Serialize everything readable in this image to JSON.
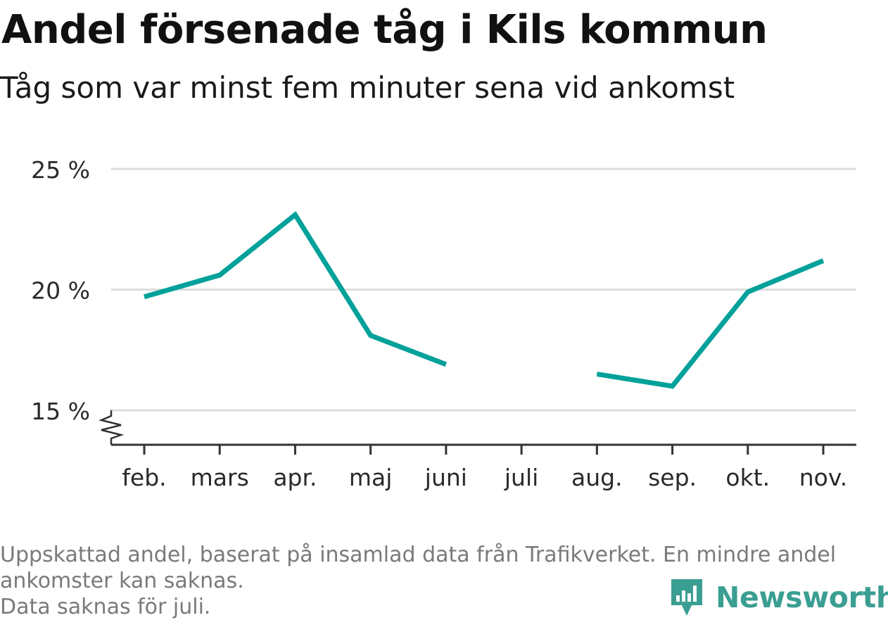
{
  "title": "Andel försenade tåg i Kils kommun",
  "subtitle": "Tåg som var minst fem minuter sena vid ankomst",
  "footnote": {
    "line1": "Uppskattad andel, baserat på insamlad data från Trafikverket. En mindre andel",
    "line2": "ankomster kan saknas.",
    "line3": "Data saknas för juli."
  },
  "brand": {
    "name": "Newsworthy",
    "icon": "newsworthy-logo-icon",
    "color": "#3a9e92"
  },
  "chart_data": {
    "type": "line",
    "categories": [
      "feb.",
      "mars",
      "apr.",
      "maj",
      "juni",
      "juli",
      "aug.",
      "sep.",
      "okt.",
      "nov."
    ],
    "series": [
      {
        "values": [
          19.7,
          20.6,
          23.1,
          18.1,
          16.9,
          null,
          16.5,
          16.0,
          19.9,
          21.2
        ],
        "color": "#00a19a"
      }
    ],
    "y_ticks": [
      15,
      20,
      25
    ],
    "y_tick_labels": [
      "15 %",
      "20 %",
      "25 %"
    ],
    "ylim": [
      15,
      25
    ],
    "y_axis_break": true,
    "grid": "horizontal",
    "legend": "none"
  }
}
